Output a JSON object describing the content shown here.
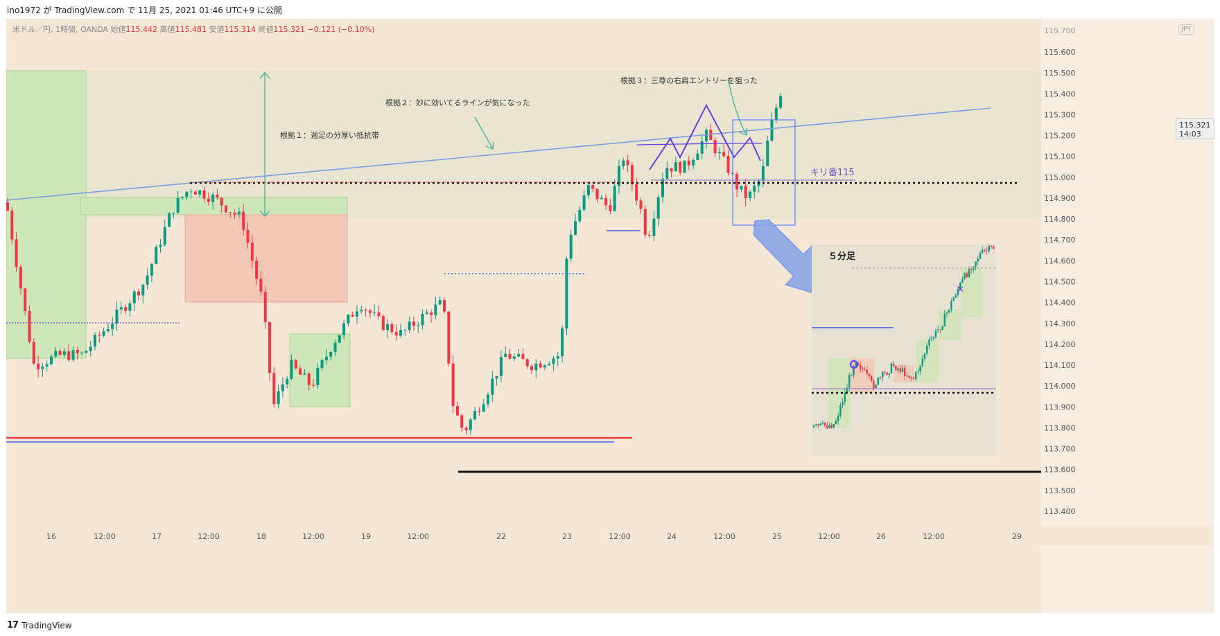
{
  "header": {
    "publish_line": "ino1972 が TradingView.com で 11月 25, 2021 01:46 UTC+9 に公開"
  },
  "symbol": {
    "name": "米ドル／円, 1時間, OANDA",
    "open_label": "始値",
    "open": "115.442",
    "high_label": "高値",
    "high": "115.481",
    "low_label": "安値",
    "low": "115.314",
    "close_label": "終値",
    "close": "115.321",
    "change": "−0.121 (−0.10%)"
  },
  "currency_badge": "JPY",
  "last_price": {
    "price": "115.321",
    "countdown": "14:03"
  },
  "footer": {
    "logo_mark": "17",
    "logo_text": "TradingView"
  },
  "chart_data": {
    "type": "candlestick",
    "y_axis": {
      "range": [
        113.32,
        115.77
      ],
      "ticks": [
        "115.600",
        "115.500",
        "115.400",
        "115.300",
        "115.200",
        "115.100",
        "115.000",
        "114.900",
        "114.800",
        "114.700",
        "114.600",
        "114.500",
        "114.400",
        "114.300",
        "114.200",
        "114.100",
        "114.000",
        "113.900",
        "113.800",
        "113.700",
        "113.600",
        "113.500",
        "113.400"
      ],
      "top_partial_tick": "115.700"
    },
    "x_axis": {
      "labels": [
        "16",
        "12:00",
        "17",
        "12:00",
        "18",
        "12:00",
        "19",
        "12:00",
        "22",
        "23",
        "12:00",
        "24",
        "12:00",
        "25",
        "12:00",
        "26",
        "12:00",
        "29"
      ]
    },
    "annotations": [
      "根拠１：週足の分厚い抵抗帯",
      "根拠２：妙に効いてるラインが気になった",
      "根拠３：三尊の右肩エントリーを狙った",
      "キリ番115",
      "５分足"
    ],
    "levels": {
      "kiriban": 115.0,
      "resistance_zone": [
        114.8,
        115.5
      ],
      "lows": [
        113.75,
        113.6
      ]
    },
    "colors": {
      "up": "#089981",
      "down": "#f23645",
      "trend": "#7b9fe0",
      "box_green": "#cfe6b9",
      "box_red": "#f3c7b5"
    }
  }
}
